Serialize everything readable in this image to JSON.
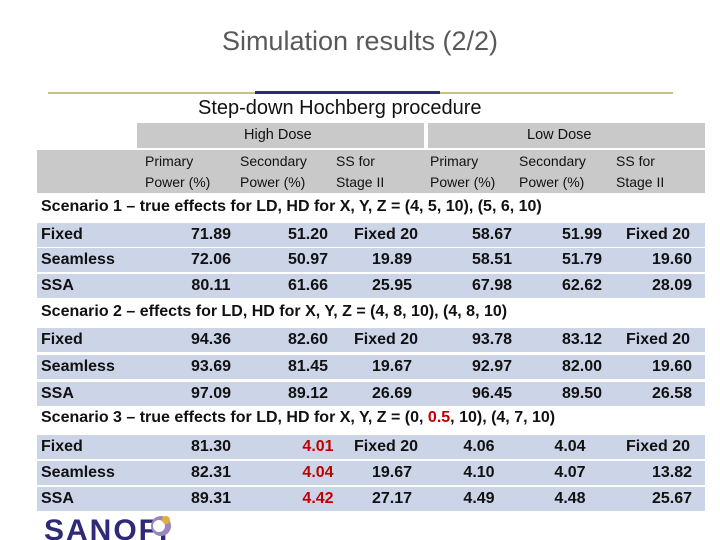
{
  "title": "Simulation results (2/2)",
  "subtitle": "Step-down Hochberg procedure",
  "headers": {
    "groups": [
      "High Dose",
      "Low Dose"
    ],
    "sub": [
      {
        "line1": "Primary",
        "line2": "Power (%)"
      },
      {
        "line1": "Secondary",
        "line2": "Power (%)"
      },
      {
        "line1": "SS for",
        "line2": "Stage II"
      },
      {
        "line1": "Primary",
        "line2": "Power (%)"
      },
      {
        "line1": "Secondary",
        "line2": "Power (%)"
      },
      {
        "line1": "SS for",
        "line2": "Stage II"
      }
    ]
  },
  "scenarios": [
    {
      "title": "Scenario 1 – true effects for LD, HD for X, Y, Z = (4, 5, 10), (5, 6, 10)",
      "rows": [
        {
          "label": "Fixed",
          "values": [
            "71.89",
            "51.20",
            "Fixed 20",
            "58.67",
            "51.99",
            "Fixed 20"
          ]
        },
        {
          "label": "Seamless",
          "values": [
            "72.06",
            "50.97",
            "19.89",
            "58.51",
            "51.79",
            "19.60"
          ]
        },
        {
          "label": "SSA",
          "values": [
            "80.11",
            "61.66",
            "25.95",
            "67.98",
            "62.62",
            "28.09"
          ]
        }
      ]
    },
    {
      "title": "Scenario 2 – effects for LD, HD for X, Y, Z = (4, 8, 10), (4, 8, 10)",
      "rows": [
        {
          "label": "Fixed",
          "values": [
            "94.36",
            "82.60",
            "Fixed 20",
            "93.78",
            "83.12",
            "Fixed 20"
          ]
        },
        {
          "label": "Seamless",
          "values": [
            "93.69",
            "81.45",
            "19.67",
            "92.97",
            "82.00",
            "19.60"
          ]
        },
        {
          "label": "SSA",
          "values": [
            "97.09",
            "89.12",
            "26.69",
            "96.45",
            "89.50",
            "26.58"
          ]
        }
      ]
    },
    {
      "title_pre": "Scenario 3 – true effects for LD, HD for X, Y, Z = (0, ",
      "title_hl": "0.5",
      "title_post": ", 10), (4, 7, 10)",
      "rows": [
        {
          "label": "Fixed",
          "values": [
            "81.30",
            "4.01",
            "Fixed 20",
            "4.06",
            "4.04",
            "Fixed 20"
          ]
        },
        {
          "label": "Seamless",
          "values": [
            "82.31",
            "4.04",
            "19.67",
            "4.10",
            "4.07",
            "13.82"
          ]
        },
        {
          "label": "SSA",
          "values": [
            "89.31",
            "4.42",
            "27.17",
            "4.49",
            "4.48",
            "25.67"
          ]
        }
      ]
    }
  ],
  "highlight_color": "#c00000",
  "logo": {
    "text": "SANOFI",
    "icon": "sanofi-bird-icon"
  }
}
